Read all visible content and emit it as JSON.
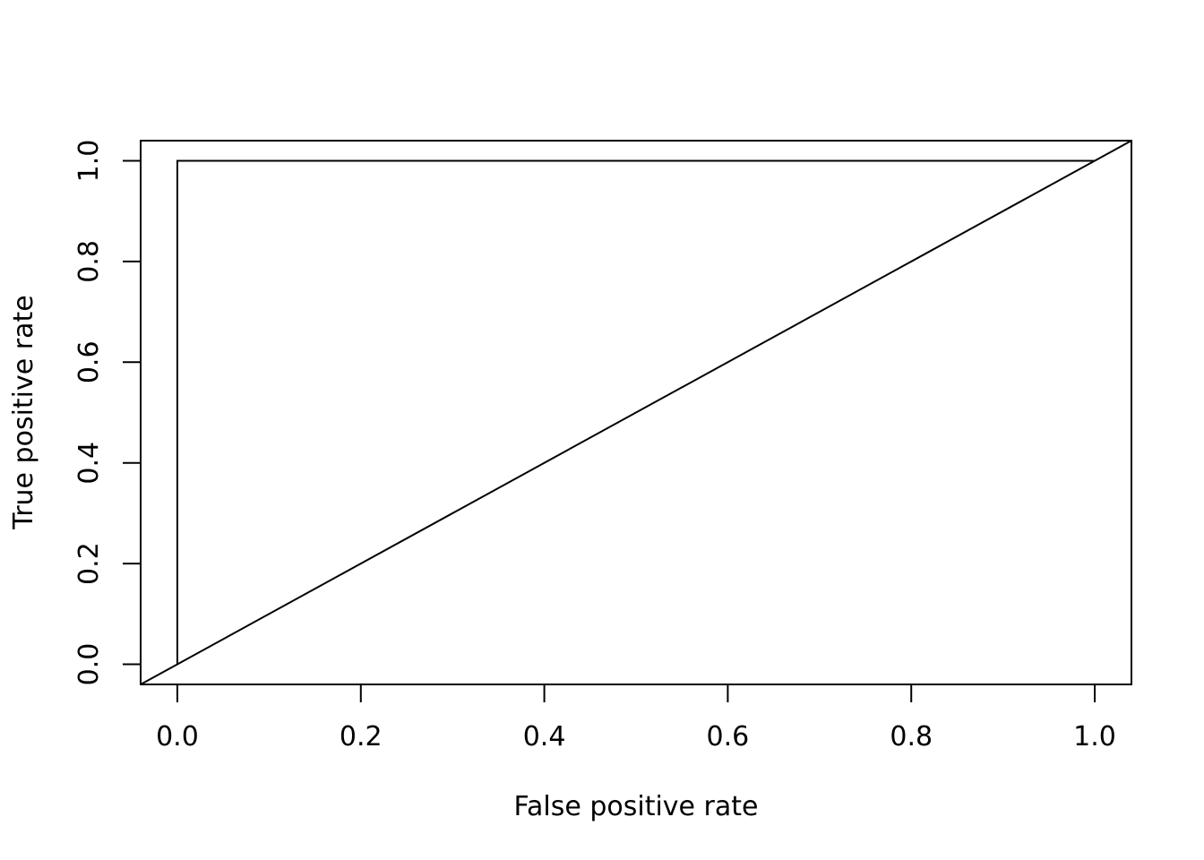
{
  "chart_data": {
    "type": "line",
    "title": "",
    "xlabel": "False positive rate",
    "ylabel": "True positive rate",
    "xlim": [
      -0.04,
      1.04
    ],
    "ylim": [
      -0.04,
      1.04
    ],
    "grid": false,
    "x_ticks": [
      "0.0",
      "0.2",
      "0.4",
      "0.6",
      "0.8",
      "1.0"
    ],
    "y_ticks": [
      "0.0",
      "0.2",
      "0.4",
      "0.6",
      "0.8",
      "1.0"
    ],
    "series": [
      {
        "x": [
          0,
          0,
          1
        ],
        "y": [
          0,
          1,
          1
        ]
      }
    ],
    "reference_line": {
      "intercept": 0,
      "slope": 1
    }
  }
}
